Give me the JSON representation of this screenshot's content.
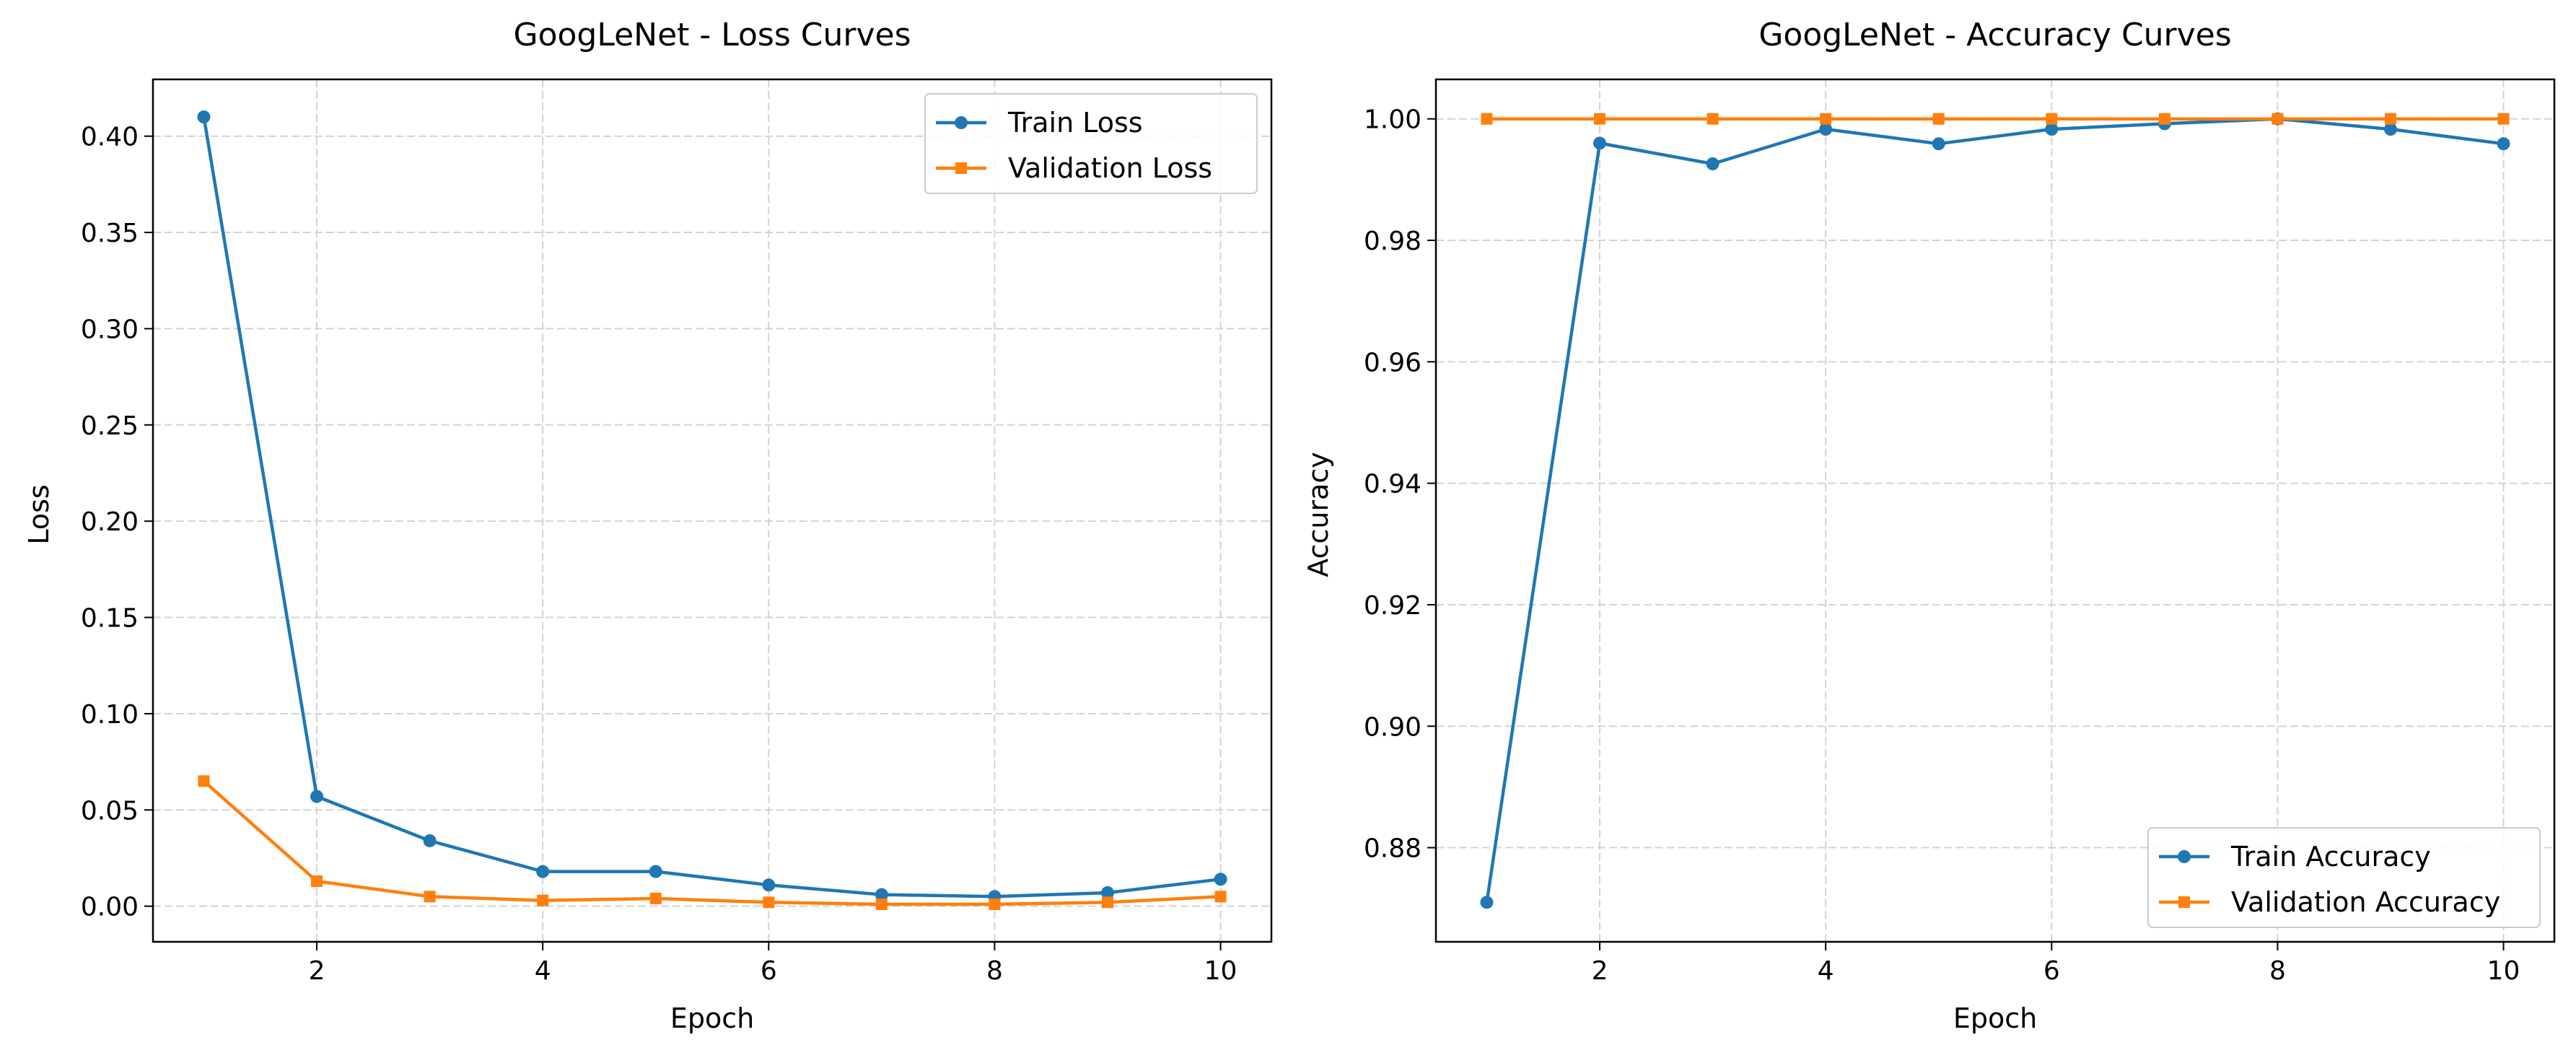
{
  "figure": {
    "colors": {
      "train": "#1f77b4",
      "validation": "#ff7f0e",
      "grid": "#d3d3d3",
      "frame": "#000000"
    }
  },
  "chart_data": [
    {
      "type": "line",
      "title": "GoogLeNet - Loss Curves",
      "xlabel": "Epoch",
      "ylabel": "Loss",
      "x": [
        1,
        2,
        3,
        4,
        5,
        6,
        7,
        8,
        9,
        10
      ],
      "xlim": [
        0.55,
        10.45
      ],
      "ylim": [
        -0.0185,
        0.4295
      ],
      "xticks": [
        2,
        4,
        6,
        8,
        10
      ],
      "xtick_labels": [
        "2",
        "4",
        "6",
        "8",
        "10"
      ],
      "yticks": [
        0.0,
        0.05,
        0.1,
        0.15,
        0.2,
        0.25,
        0.3,
        0.35,
        0.4
      ],
      "ytick_labels": [
        "0.00",
        "0.05",
        "0.10",
        "0.15",
        "0.20",
        "0.25",
        "0.30",
        "0.35",
        "0.40"
      ],
      "grid": true,
      "legend_position": "top-right",
      "series": [
        {
          "name": "Train Loss",
          "color": "#1f77b4",
          "marker": "circle",
          "values": [
            0.41,
            0.057,
            0.034,
            0.018,
            0.018,
            0.011,
            0.006,
            0.005,
            0.007,
            0.014
          ]
        },
        {
          "name": "Validation Loss",
          "color": "#ff7f0e",
          "marker": "square",
          "values": [
            0.065,
            0.013,
            0.005,
            0.003,
            0.004,
            0.002,
            0.001,
            0.001,
            0.002,
            0.005
          ]
        }
      ]
    },
    {
      "type": "line",
      "title": "GoogLeNet - Accuracy Curves",
      "xlabel": "Epoch",
      "ylabel": "Accuracy",
      "x": [
        1,
        2,
        3,
        4,
        5,
        6,
        7,
        8,
        9,
        10
      ],
      "xlim": [
        0.55,
        10.45
      ],
      "ylim": [
        0.8645,
        1.0065
      ],
      "xticks": [
        2,
        4,
        6,
        8,
        10
      ],
      "xtick_labels": [
        "2",
        "4",
        "6",
        "8",
        "10"
      ],
      "yticks": [
        0.88,
        0.9,
        0.92,
        0.94,
        0.96,
        0.98,
        1.0
      ],
      "ytick_labels": [
        "0.88",
        "0.90",
        "0.92",
        "0.94",
        "0.96",
        "0.98",
        "1.00"
      ],
      "grid": true,
      "legend_position": "bottom-right",
      "series": [
        {
          "name": "Train Accuracy",
          "color": "#1f77b4",
          "marker": "circle",
          "values": [
            0.871,
            0.996,
            0.9926,
            0.9983,
            0.9959,
            0.9983,
            0.9992,
            1.0,
            0.9983,
            0.9959
          ]
        },
        {
          "name": "Validation Accuracy",
          "color": "#ff7f0e",
          "marker": "square",
          "values": [
            1.0,
            1.0,
            1.0,
            1.0,
            1.0,
            1.0,
            1.0,
            1.0,
            1.0,
            1.0
          ]
        }
      ]
    }
  ]
}
